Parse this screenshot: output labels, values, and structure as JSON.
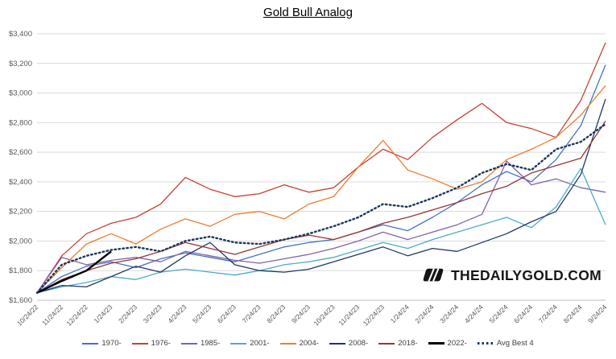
{
  "title": "Gold Bull Analog",
  "watermark": "THEDAILYGOLD.COM",
  "chart_data": {
    "type": "line",
    "title": "Gold Bull Analog",
    "xlabel": "",
    "ylabel": "",
    "ylim": [
      1600,
      3400
    ],
    "ytick_step": 200,
    "y_tick_prefix": "$",
    "grid": true,
    "legend_position": "bottom",
    "x": [
      "10/24/22",
      "11/24/22",
      "12/24/22",
      "1/24/23",
      "2/24/23",
      "3/24/23",
      "4/24/23",
      "5/24/23",
      "6/24/23",
      "7/24/23",
      "8/24/23",
      "9/24/23",
      "10/24/23",
      "11/24/23",
      "12/24/23",
      "1/24/24",
      "2/24/24",
      "3/24/24",
      "4/24/24",
      "5/24/24",
      "6/24/24",
      "7/24/24",
      "8/24/24",
      "9/24/24"
    ],
    "series": [
      {
        "name": "1970-",
        "color": "#4472C4",
        "width": 1.3,
        "dotted": false,
        "values": [
          1650,
          1760,
          1830,
          1860,
          1820,
          1880,
          1920,
          1890,
          1860,
          1910,
          1960,
          1990,
          2010,
          2060,
          2110,
          2070,
          2160,
          2260,
          2380,
          2470,
          2400,
          2550,
          2780,
          3190
        ]
      },
      {
        "name": "1976-",
        "color": "#C44236",
        "width": 1.3,
        "dotted": false,
        "values": [
          1650,
          1900,
          2050,
          2120,
          2160,
          2250,
          2430,
          2350,
          2300,
          2320,
          2380,
          2330,
          2360,
          2500,
          2620,
          2550,
          2700,
          2820,
          2930,
          2800,
          2760,
          2700,
          2950,
          3340
        ]
      },
      {
        "name": "1985-",
        "color": "#8064A2",
        "width": 1.3,
        "dotted": false,
        "values": [
          1650,
          1890,
          1840,
          1870,
          1890,
          1860,
          1930,
          1900,
          1870,
          1850,
          1880,
          1910,
          1950,
          2000,
          2060,
          2010,
          2060,
          2110,
          2180,
          2540,
          2380,
          2420,
          2360,
          2330
        ]
      },
      {
        "name": "2001-",
        "color": "#4BACC6",
        "width": 1.3,
        "dotted": false,
        "values": [
          1650,
          1690,
          1720,
          1760,
          1740,
          1790,
          1810,
          1790,
          1770,
          1800,
          1840,
          1860,
          1890,
          1940,
          1990,
          1950,
          2010,
          2060,
          2110,
          2160,
          2090,
          2230,
          2490,
          2110
        ]
      },
      {
        "name": "2004-",
        "color": "#ED7D31",
        "width": 1.3,
        "dotted": false,
        "values": [
          1650,
          1820,
          1980,
          2050,
          1980,
          2080,
          2150,
          2100,
          2180,
          2200,
          2150,
          2250,
          2300,
          2500,
          2680,
          2480,
          2420,
          2350,
          2400,
          2550,
          2620,
          2700,
          2850,
          3050
        ]
      },
      {
        "name": "2008-",
        "color": "#1F3864",
        "width": 1.3,
        "dotted": false,
        "values": [
          1650,
          1700,
          1690,
          1760,
          1830,
          1790,
          1900,
          1990,
          1840,
          1800,
          1790,
          1810,
          1860,
          1910,
          1960,
          1900,
          1950,
          1930,
          1990,
          2050,
          2130,
          2200,
          2450,
          2960
        ]
      },
      {
        "name": "2018-",
        "color": "#943634",
        "width": 1.3,
        "dotted": false,
        "values": [
          1650,
          1740,
          1800,
          1850,
          1880,
          1930,
          1990,
          1950,
          1910,
          1960,
          2010,
          2040,
          2010,
          2060,
          2120,
          2160,
          2210,
          2260,
          2320,
          2370,
          2460,
          2510,
          2560,
          2810
        ]
      },
      {
        "name": "2022-",
        "color": "#000000",
        "width": 2.4,
        "dotted": false,
        "values": [
          1650,
          1730,
          1800,
          1930,
          null,
          null,
          null,
          null,
          null,
          null,
          null,
          null,
          null,
          null,
          null,
          null,
          null,
          null,
          null,
          null,
          null,
          null,
          null,
          null
        ]
      },
      {
        "name": "Avg Best 4",
        "color": "#17375E",
        "width": 2.4,
        "dotted": true,
        "values": [
          1650,
          1840,
          1900,
          1940,
          1960,
          1930,
          2000,
          2030,
          1990,
          1980,
          2010,
          2050,
          2100,
          2160,
          2250,
          2230,
          2290,
          2360,
          2460,
          2520,
          2480,
          2620,
          2670,
          2790
        ]
      }
    ]
  }
}
